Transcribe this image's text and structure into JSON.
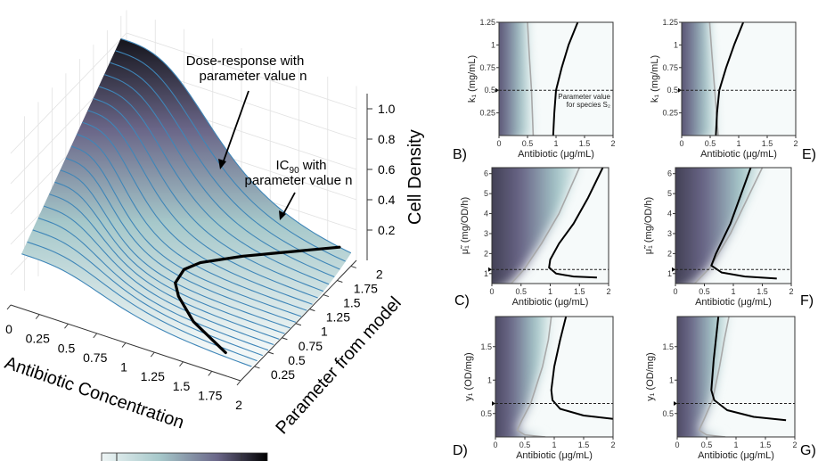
{
  "colors": {
    "dark": "#121218",
    "mid": "#6a6688",
    "teal": "#a6c8ca",
    "light": "#eef5f5",
    "surface_line": "#3f86b8",
    "ic90_line": "#000000",
    "gray_line": "#a8a8a8"
  },
  "chart_data": [
    {
      "type": "surface",
      "panel": "A",
      "xlabel": "Antibiotic Concentration",
      "ylabel": "Parameter from model",
      "zlabel": "Cell Density",
      "xticks": [
        "0",
        "0.25",
        "0.5",
        "0.75",
        "1",
        "1.25",
        "1.5",
        "1.75",
        "2"
      ],
      "yticks": [
        "0.25",
        "0.5",
        "0.75",
        "1",
        "1.25",
        "1.5",
        "1.75",
        "2"
      ],
      "zticks": [
        "0.2",
        "0.4",
        "0.6",
        "0.8",
        "1.0"
      ],
      "xlim": [
        0,
        2
      ],
      "ylim": [
        0.25,
        2
      ],
      "zlim": [
        0,
        1
      ],
      "ic90_curve": {
        "param": [
          0.25,
          0.5,
          0.75,
          0.9,
          1.1,
          1.25,
          1.5,
          1.75,
          2.0
        ],
        "antibiotic": [
          1.75,
          1.35,
          1.1,
          1.0,
          0.98,
          1.05,
          1.3,
          1.6,
          1.9
        ]
      },
      "annotations": [
        {
          "text": "Dose-response with"
        },
        {
          "text": "parameter value n"
        },
        {
          "text": "IC",
          "sub": "90",
          "rest": " with"
        },
        {
          "text": "parameter value n"
        }
      ],
      "colorbar": true
    },
    {
      "panel": "B",
      "type": "heatmap",
      "label": "B)",
      "xlabel": "Antibiotic (μg/mL)",
      "ylabel": "k₁ (mg/mL)",
      "xlim": [
        0,
        2
      ],
      "ylim": [
        0,
        1.25
      ],
      "xticks": [
        "0",
        "0.5",
        "1",
        "1.5",
        "2"
      ],
      "yticks": [
        0.25,
        0.5,
        0.75,
        1,
        1.25
      ],
      "ytick_labels": [
        "0.25",
        "0.5",
        "0.75",
        "1",
        "1.25"
      ],
      "dashed_y": 0.5,
      "annotation": [
        "Parameter value",
        "for species S₂"
      ],
      "black": [
        [
          0.95,
          0
        ],
        [
          0.97,
          0.25
        ],
        [
          1.0,
          0.5
        ],
        [
          1.1,
          0.75
        ],
        [
          1.22,
          1
        ],
        [
          1.38,
          1.25
        ]
      ],
      "gray": [
        [
          0.6,
          0
        ],
        [
          0.57,
          0.5
        ],
        [
          0.53,
          0.9
        ],
        [
          0.5,
          1.25
        ]
      ]
    },
    {
      "panel": "E",
      "type": "heatmap",
      "label": "E)",
      "xlabel": "Antibiotic (μg/mL)",
      "ylabel": "k₁ (mg/mL)",
      "xlim": [
        0,
        2
      ],
      "ylim": [
        0,
        1.25
      ],
      "xticks": [
        "0",
        "0.5",
        "1",
        "1.5",
        "2"
      ],
      "yticks": [
        0.25,
        0.5,
        0.75,
        1,
        1.25
      ],
      "ytick_labels": [
        "0.25",
        "0.5",
        "0.75",
        "1",
        "1.25"
      ],
      "dashed_y": 0.5,
      "black": [
        [
          0.6,
          0
        ],
        [
          0.62,
          0.25
        ],
        [
          0.66,
          0.5
        ],
        [
          0.78,
          0.75
        ],
        [
          0.92,
          1
        ],
        [
          1.08,
          1.25
        ]
      ],
      "gray": [
        [
          0.64,
          0
        ],
        [
          0.58,
          0.5
        ],
        [
          0.53,
          0.9
        ],
        [
          0.49,
          1.25
        ]
      ]
    },
    {
      "panel": "C",
      "type": "heatmap",
      "label": "C)",
      "xlabel": "Antibiotic (μg/mL)",
      "ylabel": "μ̃₁ (mg/OD/h)",
      "xlim": [
        0,
        2
      ],
      "ylim": [
        0.5,
        6.3
      ],
      "xticks": [
        "0",
        "0.5",
        "1",
        "1.5",
        "2"
      ],
      "yticks": [
        1,
        2,
        3,
        4,
        5,
        6
      ],
      "ytick_labels": [
        "1",
        "2",
        "3",
        "4",
        "5",
        "6"
      ],
      "dashed_y": 1.2,
      "black": [
        [
          1.8,
          0.8
        ],
        [
          1.4,
          0.85
        ],
        [
          1.1,
          1.0
        ],
        [
          0.98,
          1.3
        ],
        [
          1.0,
          1.7
        ],
        [
          1.15,
          2.5
        ],
        [
          1.4,
          3.5
        ],
        [
          1.65,
          4.8
        ],
        [
          1.9,
          6.3
        ]
      ],
      "gray": [
        [
          0.33,
          0.5
        ],
        [
          0.55,
          1.2
        ],
        [
          0.85,
          2.5
        ],
        [
          1.15,
          4
        ],
        [
          1.5,
          6.3
        ]
      ]
    },
    {
      "panel": "F",
      "type": "heatmap",
      "label": "F)",
      "xlabel": "Antibiotic (μg/mL)",
      "ylabel": "μ̃₁ (mg/OD/h)",
      "xlim": [
        0,
        2
      ],
      "ylim": [
        0.5,
        6.3
      ],
      "xticks": [
        "0",
        "0.5",
        "1",
        "1.5",
        "2"
      ],
      "yticks": [
        1,
        2,
        3,
        4,
        5,
        6
      ],
      "ytick_labels": [
        "1",
        "2",
        "3",
        "4",
        "5",
        "6"
      ],
      "dashed_y": 1.2,
      "black": [
        [
          1.75,
          0.75
        ],
        [
          1.2,
          0.85
        ],
        [
          0.8,
          1.05
        ],
        [
          0.62,
          1.4
        ],
        [
          0.7,
          2
        ],
        [
          0.95,
          3.5
        ],
        [
          1.3,
          6.3
        ]
      ],
      "gray": [
        [
          0.33,
          0.5
        ],
        [
          0.6,
          1.3
        ],
        [
          0.95,
          3
        ],
        [
          1.5,
          6.3
        ]
      ]
    },
    {
      "panel": "D",
      "type": "heatmap",
      "label": "D)",
      "xlabel": "Antibiotic (μg/mL)",
      "ylabel": "y₁ (OD/mg)",
      "xlim": [
        0,
        2
      ],
      "ylim": [
        0.15,
        1.95
      ],
      "xticks": [
        "0",
        "0.5",
        "1",
        "1.5",
        "2"
      ],
      "yticks": [
        0.5,
        1,
        1.5
      ],
      "ytick_labels": [
        "0.5",
        "1",
        "1.5"
      ],
      "dashed_y": 0.65,
      "black": [
        [
          2,
          0.42
        ],
        [
          1.5,
          0.47
        ],
        [
          1.1,
          0.57
        ],
        [
          0.97,
          0.7
        ],
        [
          0.95,
          0.85
        ],
        [
          1.0,
          1.2
        ],
        [
          1.1,
          1.6
        ],
        [
          1.2,
          1.95
        ]
      ],
      "gray": [
        [
          0.85,
          0.15
        ],
        [
          0.5,
          0.18
        ],
        [
          0.37,
          0.25
        ],
        [
          0.45,
          0.4
        ],
        [
          0.6,
          0.65
        ],
        [
          0.8,
          1.2
        ],
        [
          0.9,
          1.6
        ],
        [
          0.95,
          1.95
        ]
      ]
    },
    {
      "panel": "G",
      "type": "heatmap",
      "label": "G)",
      "xlabel": "Antibiotic (μg/mL)",
      "ylabel": "y₁ (OD/mg)",
      "xlim": [
        0,
        2
      ],
      "ylim": [
        0.15,
        1.95
      ],
      "xticks": [
        "0",
        "0.5",
        "1",
        "1.5",
        "2"
      ],
      "yticks": [
        0.5,
        1,
        1.5
      ],
      "ytick_labels": [
        "0.5",
        "1",
        "1.5"
      ],
      "dashed_y": 0.65,
      "black": [
        [
          1.85,
          0.4
        ],
        [
          1.3,
          0.45
        ],
        [
          0.85,
          0.55
        ],
        [
          0.63,
          0.7
        ],
        [
          0.58,
          0.85
        ],
        [
          0.62,
          1.3
        ],
        [
          0.7,
          1.95
        ]
      ],
      "gray": [
        [
          0.82,
          0.15
        ],
        [
          0.5,
          0.18
        ],
        [
          0.37,
          0.25
        ],
        [
          0.45,
          0.4
        ],
        [
          0.6,
          0.7
        ],
        [
          0.72,
          1.2
        ],
        [
          0.8,
          1.6
        ],
        [
          0.88,
          1.95
        ]
      ]
    }
  ]
}
